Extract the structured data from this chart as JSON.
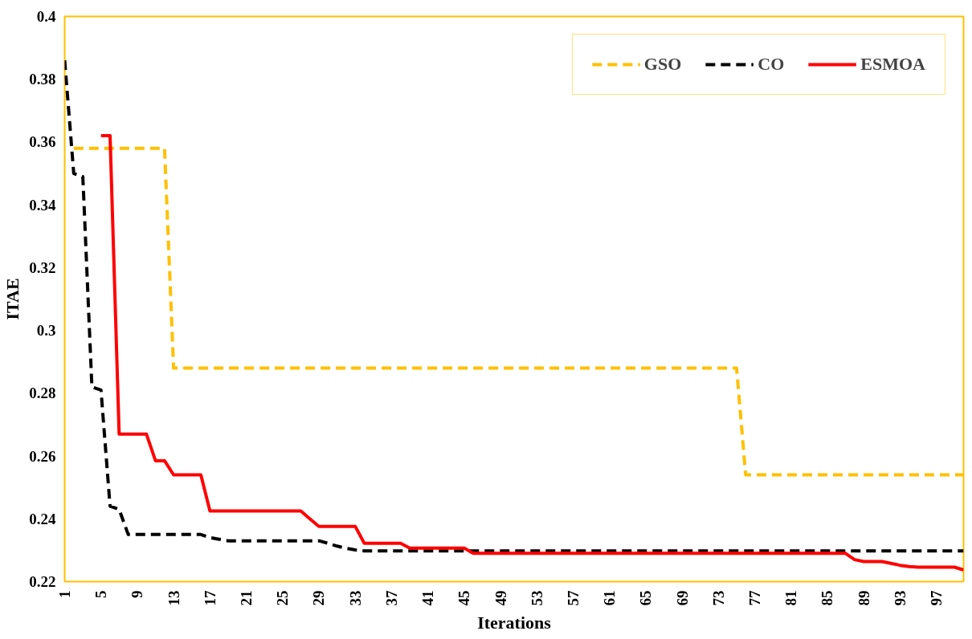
{
  "chart_data": {
    "type": "line",
    "xlabel": "Iterations",
    "ylabel": "ITAE",
    "x": [
      1,
      2,
      3,
      4,
      5,
      6,
      7,
      8,
      9,
      10,
      11,
      12,
      13,
      14,
      15,
      16,
      17,
      18,
      19,
      20,
      21,
      22,
      23,
      24,
      25,
      26,
      27,
      28,
      29,
      30,
      31,
      32,
      33,
      34,
      35,
      36,
      37,
      38,
      39,
      40,
      41,
      42,
      43,
      44,
      45,
      46,
      47,
      48,
      49,
      50,
      51,
      52,
      53,
      54,
      55,
      56,
      57,
      58,
      59,
      60,
      61,
      62,
      63,
      64,
      65,
      66,
      67,
      68,
      69,
      70,
      71,
      72,
      73,
      74,
      75,
      76,
      77,
      78,
      79,
      80,
      81,
      82,
      83,
      84,
      85,
      86,
      87,
      88,
      89,
      90,
      91,
      92,
      93,
      94,
      95,
      96,
      97,
      98,
      99,
      100
    ],
    "xlim": [
      1,
      100
    ],
    "xticks": [
      1,
      5,
      9,
      13,
      17,
      21,
      25,
      29,
      33,
      37,
      41,
      45,
      49,
      53,
      57,
      61,
      65,
      69,
      73,
      77,
      81,
      85,
      89,
      93,
      97
    ],
    "ylim": [
      0.22,
      0.4
    ],
    "yticks": [
      0.22,
      0.24,
      0.26,
      0.28,
      0.3,
      0.32,
      0.34,
      0.36,
      0.38,
      0.4
    ],
    "grid": false,
    "legend": "top right",
    "series": [
      {
        "name": "GSO",
        "color": "#ffc000",
        "line_style": "dashed",
        "values": [
          null,
          0.358,
          0.358,
          0.358,
          0.358,
          0.358,
          0.358,
          0.358,
          0.358,
          0.358,
          0.358,
          0.358,
          0.288,
          0.288,
          0.288,
          0.288,
          0.288,
          0.288,
          0.288,
          0.288,
          0.288,
          0.288,
          0.288,
          0.288,
          0.288,
          0.288,
          0.288,
          0.288,
          0.288,
          0.288,
          0.288,
          0.288,
          0.288,
          0.288,
          0.288,
          0.288,
          0.288,
          0.288,
          0.288,
          0.288,
          0.288,
          0.288,
          0.288,
          0.288,
          0.288,
          0.288,
          0.288,
          0.288,
          0.288,
          0.288,
          0.288,
          0.288,
          0.288,
          0.288,
          0.288,
          0.288,
          0.288,
          0.288,
          0.288,
          0.288,
          0.288,
          0.288,
          0.288,
          0.288,
          0.288,
          0.288,
          0.288,
          0.288,
          0.288,
          0.288,
          0.288,
          0.288,
          0.288,
          0.288,
          0.288,
          0.254,
          0.254,
          0.254,
          0.254,
          0.254,
          0.254,
          0.254,
          0.254,
          0.254,
          0.254,
          0.254,
          0.254,
          0.254,
          0.254,
          0.254,
          0.254,
          0.254,
          0.254,
          0.254,
          0.254,
          0.254,
          0.254,
          0.254,
          0.254,
          0.254
        ]
      },
      {
        "name": "CO",
        "color": "#000000",
        "line_style": "dashed",
        "values": [
          0.386,
          0.35,
          0.349,
          0.282,
          0.281,
          0.244,
          0.243,
          0.235,
          0.235,
          0.235,
          0.235,
          0.235,
          0.235,
          0.235,
          0.235,
          0.235,
          0.234,
          0.2335,
          0.233,
          0.233,
          0.233,
          0.233,
          0.233,
          0.233,
          0.233,
          0.233,
          0.233,
          0.233,
          0.233,
          0.2322,
          0.2313,
          0.2306,
          0.2301,
          0.2298,
          0.2298,
          0.2298,
          0.2298,
          0.2298,
          0.2298,
          0.2298,
          0.2298,
          0.2298,
          0.2298,
          0.2298,
          0.2298,
          0.2298,
          0.2298,
          0.2298,
          0.2298,
          0.2298,
          0.2298,
          0.2298,
          0.2298,
          0.2298,
          0.2298,
          0.2298,
          0.2298,
          0.2298,
          0.2298,
          0.2298,
          0.2298,
          0.2298,
          0.2298,
          0.2298,
          0.2298,
          0.2298,
          0.2298,
          0.2298,
          0.2298,
          0.2298,
          0.2298,
          0.2298,
          0.2298,
          0.2298,
          0.2298,
          0.2298,
          0.2298,
          0.2298,
          0.2298,
          0.2298,
          0.2298,
          0.2298,
          0.2298,
          0.2298,
          0.2298,
          0.2298,
          0.2298,
          0.2298,
          0.2298,
          0.2298,
          0.2298,
          0.2298,
          0.2298,
          0.2298,
          0.2298,
          0.2298,
          0.2298,
          0.2298,
          0.2298,
          0.2298
        ]
      },
      {
        "name": "ESMOA",
        "color": "#ff0000",
        "line_style": "solid",
        "values": [
          null,
          null,
          null,
          null,
          0.362,
          0.362,
          0.267,
          0.267,
          0.267,
          0.267,
          0.2585,
          0.2585,
          0.254,
          0.254,
          0.254,
          0.254,
          0.2425,
          0.2425,
          0.2425,
          0.2425,
          0.2425,
          0.2425,
          0.2425,
          0.2425,
          0.2425,
          0.2425,
          0.2425,
          0.24,
          0.2376,
          0.2376,
          0.2376,
          0.2376,
          0.2376,
          0.2322,
          0.2322,
          0.2322,
          0.2322,
          0.2322,
          0.2307,
          0.2307,
          0.2307,
          0.2307,
          0.2307,
          0.2307,
          0.2307,
          0.229,
          0.229,
          0.229,
          0.229,
          0.229,
          0.229,
          0.229,
          0.229,
          0.229,
          0.229,
          0.229,
          0.229,
          0.229,
          0.229,
          0.229,
          0.229,
          0.229,
          0.229,
          0.229,
          0.229,
          0.229,
          0.229,
          0.229,
          0.229,
          0.229,
          0.229,
          0.229,
          0.229,
          0.229,
          0.229,
          0.229,
          0.229,
          0.229,
          0.229,
          0.229,
          0.229,
          0.229,
          0.229,
          0.229,
          0.229,
          0.229,
          0.229,
          0.227,
          0.2264,
          0.2264,
          0.2264,
          0.2258,
          0.2252,
          0.2248,
          0.2246,
          0.2246,
          0.2246,
          0.2246,
          0.2246,
          0.2237
        ]
      }
    ]
  }
}
